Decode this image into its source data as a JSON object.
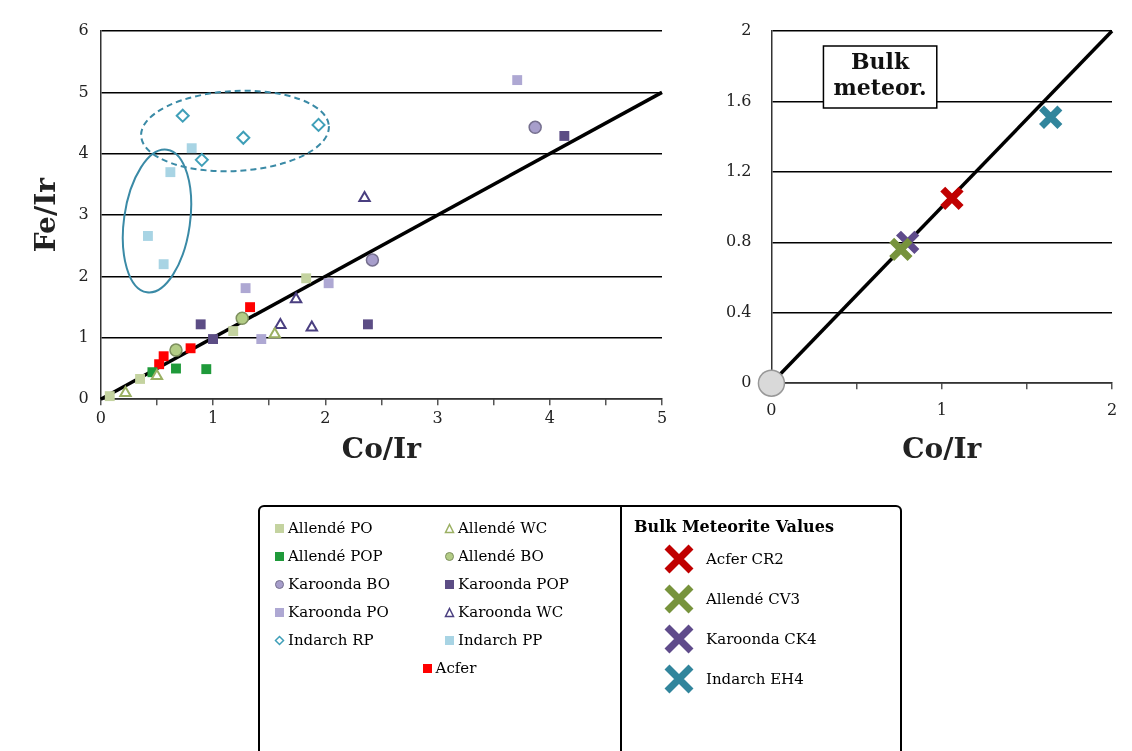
{
  "chart_data": [
    {
      "type": "scatter",
      "ylabel": "Fe/Ir",
      "xlabel": "Co/Ir",
      "xlim": [
        0,
        5
      ],
      "ylim": [
        0,
        6
      ],
      "xticks": [
        0,
        {
          "value": 0.5,
          "label": null
        },
        1,
        {
          "value": 1.5,
          "label": null
        },
        2,
        {
          "value": 2.5,
          "label": null
        },
        3,
        {
          "value": 3.5,
          "label": null
        },
        4,
        {
          "value": 4.5,
          "label": null
        },
        5
      ],
      "yticks": [
        0,
        1,
        2,
        3,
        4,
        5,
        6
      ],
      "grid": "y",
      "legend": "bottom",
      "series": [
        {
          "name": "Allendé PO",
          "color": "#c4d3a0",
          "marker": "square",
          "x": [
            1.83,
            1.18,
            0.35,
            0.08
          ],
          "values": [
            1.97,
            1.11,
            0.33,
            0.05
          ]
        },
        {
          "name": "Allendé WC",
          "color": "#9bb063",
          "marker": "triangle",
          "x": [
            1.55,
            0.22,
            0.5
          ],
          "values": [
            1.06,
            0.1,
            0.38
          ]
        },
        {
          "name": "Allendé POP",
          "color": "#1f9a3a",
          "marker": "square",
          "x": [
            0.46,
            0.67,
            0.94
          ],
          "values": [
            0.44,
            0.5,
            0.49
          ]
        },
        {
          "name": "Allendé BO",
          "color": "#b3cc86",
          "marker": "circle",
          "x": [
            1.26,
            0.67
          ],
          "values": [
            1.32,
            0.8
          ]
        },
        {
          "name": "Karoonda BO",
          "color": "#a79ecb",
          "marker": "circle",
          "x": [
            2.42,
            3.87
          ],
          "values": [
            2.27,
            4.43
          ]
        },
        {
          "name": "Karoonda POP",
          "color": "#5c4d85",
          "marker": "square",
          "x": [
            0.89,
            1.0,
            2.38,
            4.13
          ],
          "values": [
            1.22,
            0.98,
            1.22,
            4.29
          ]
        },
        {
          "name": "Karoonda PO",
          "color": "#aea8d3",
          "marker": "square",
          "x": [
            3.71,
            2.03,
            1.29,
            1.43
          ],
          "values": [
            5.2,
            1.89,
            1.81,
            0.98
          ]
        },
        {
          "name": "Karoonda WC",
          "color": "#4a3f80",
          "marker": "triangle",
          "x": [
            2.35,
            1.88,
            1.74,
            1.6
          ],
          "values": [
            3.28,
            1.17,
            1.63,
            1.21
          ]
        },
        {
          "name": "Indarch RP",
          "color": "#3f9fb8",
          "marker": "diamond",
          "x": [
            0.73,
            1.27,
            1.94,
            0.9
          ],
          "values": [
            4.62,
            4.26,
            4.47,
            3.9
          ]
        },
        {
          "name": "Indarch PP",
          "color": "#a8d4e4",
          "marker": "square",
          "x": [
            0.81,
            0.62,
            0.42,
            0.56
          ],
          "values": [
            4.09,
            3.7,
            2.66,
            2.2
          ]
        },
        {
          "name": "Acfer",
          "color": "#ff0000",
          "marker": "square",
          "x": [
            0.56,
            0.52,
            0.8,
            1.33
          ],
          "values": [
            0.7,
            0.57,
            0.83,
            1.5
          ]
        },
        {
          "type": "line",
          "color": "#000000",
          "x": [
            0,
            5
          ],
          "values": [
            0,
            5
          ]
        }
      ]
    },
    {
      "type": "scatter",
      "xlabel": "Co/Ir",
      "xlim": [
        0,
        2
      ],
      "ylim": [
        0,
        2
      ],
      "xticks": [
        0,
        {
          "value": 0.5,
          "label": null
        },
        1,
        {
          "value": 1.5,
          "label": null
        },
        2
      ],
      "yticks": [
        0,
        0.4,
        0.8,
        1.2,
        1.6,
        2
      ],
      "grid": "y",
      "legend": "bottom",
      "legend_title": "Bulk Meteorite Values",
      "annotations": [
        "Bulk meteor."
      ],
      "series": [
        {
          "type": "line",
          "color": "#000000",
          "x": [
            0,
            2
          ],
          "values": [
            0,
            2
          ]
        },
        {
          "color": "#d9d9d9",
          "marker": "circle",
          "x": [
            0
          ],
          "values": [
            0
          ]
        },
        {
          "name": "Acfer CR2",
          "color": "#c00000",
          "marker": "cross",
          "x": [
            1.06
          ],
          "values": [
            1.05
          ]
        },
        {
          "name": "Allendé  CV3",
          "color": "#77933c",
          "marker": "cross",
          "x": [
            0.76
          ],
          "values": [
            0.76
          ]
        },
        {
          "name": "Karoonda CK4",
          "color": "#5f4b8b",
          "marker": "cross",
          "x": [
            0.8
          ],
          "values": [
            0.8
          ]
        },
        {
          "name": "Indarch EH4",
          "color": "#31859c",
          "marker": "cross",
          "x": [
            1.64
          ],
          "values": [
            1.51
          ]
        }
      ]
    }
  ]
}
